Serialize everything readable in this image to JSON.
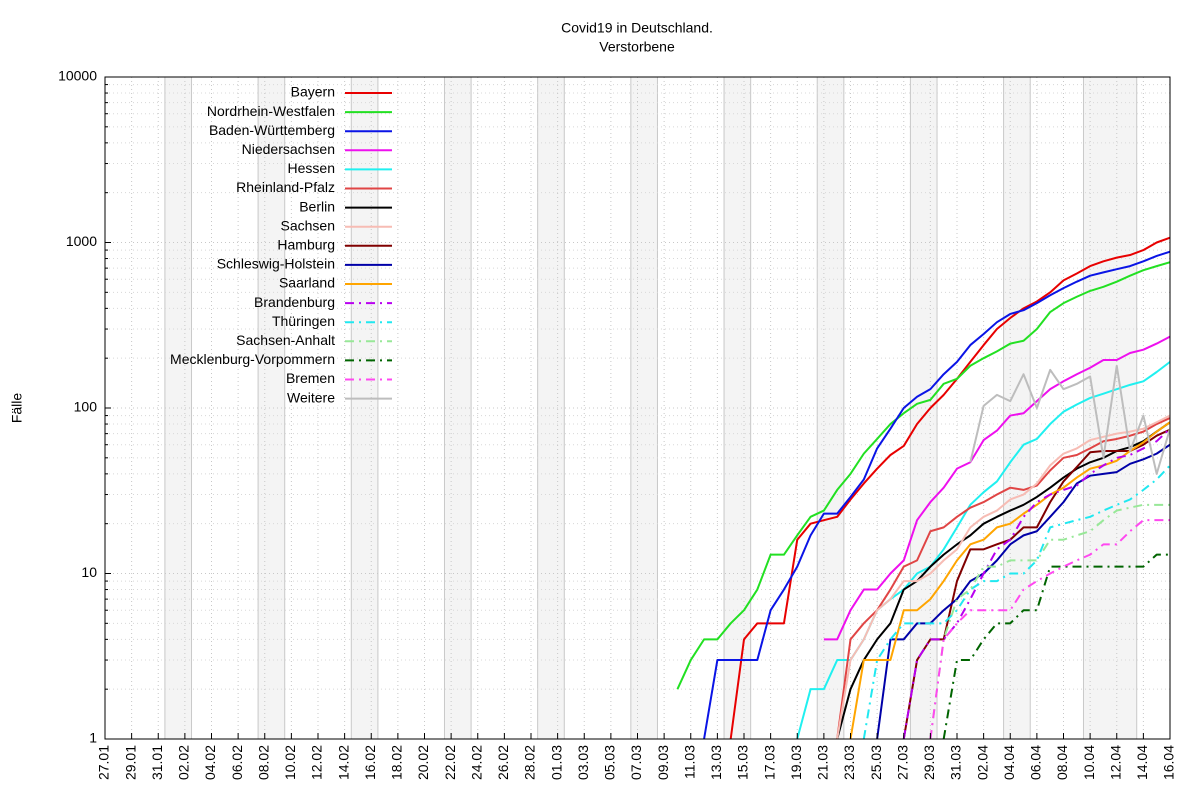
{
  "chart_data": {
    "type": "line",
    "title": "Covid19 in Deutschland.",
    "subtitle": "Verstorbene",
    "ylabel": "Fälle",
    "log_scale_y": true,
    "grid": true,
    "legend": "upper left",
    "x": [
      43,
      44,
      45,
      46,
      47,
      48,
      49,
      50,
      51,
      52,
      53,
      54,
      55,
      56,
      57,
      58,
      59,
      60,
      61,
      62,
      63,
      64,
      65,
      66,
      67,
      68,
      69,
      70,
      71,
      72,
      73,
      74,
      75,
      76,
      77,
      78,
      79,
      80
    ],
    "xlim": [
      0,
      80
    ],
    "xticks": [
      {
        "value": 0,
        "label": "27.01"
      },
      {
        "value": 2,
        "label": "29.01"
      },
      {
        "value": 4,
        "label": "31.01"
      },
      {
        "value": 6,
        "label": "02.02"
      },
      {
        "value": 8,
        "label": "04.02"
      },
      {
        "value": 10,
        "label": "06.02"
      },
      {
        "value": 12,
        "label": "08.02"
      },
      {
        "value": 14,
        "label": "10.02"
      },
      {
        "value": 16,
        "label": "12.02"
      },
      {
        "value": 18,
        "label": "14.02"
      },
      {
        "value": 20,
        "label": "16.02"
      },
      {
        "value": 22,
        "label": "18.02"
      },
      {
        "value": 24,
        "label": "20.02"
      },
      {
        "value": 26,
        "label": "22.02"
      },
      {
        "value": 28,
        "label": "24.02"
      },
      {
        "value": 30,
        "label": "26.02"
      },
      {
        "value": 32,
        "label": "28.02"
      },
      {
        "value": 34,
        "label": "01.03"
      },
      {
        "value": 36,
        "label": "03.03"
      },
      {
        "value": 38,
        "label": "05.03"
      },
      {
        "value": 40,
        "label": "07.03"
      },
      {
        "value": 42,
        "label": "09.03"
      },
      {
        "value": 44,
        "label": "11.03"
      },
      {
        "value": 46,
        "label": "13.03"
      },
      {
        "value": 48,
        "label": "15.03"
      },
      {
        "value": 50,
        "label": "17.03"
      },
      {
        "value": 52,
        "label": "19.03"
      },
      {
        "value": 54,
        "label": "21.03"
      },
      {
        "value": 56,
        "label": "23.03"
      },
      {
        "value": 58,
        "label": "25.03"
      },
      {
        "value": 60,
        "label": "27.03"
      },
      {
        "value": 62,
        "label": "29.03"
      },
      {
        "value": 64,
        "label": "31.03"
      },
      {
        "value": 66,
        "label": "02.04"
      },
      {
        "value": 68,
        "label": "04.04"
      },
      {
        "value": 70,
        "label": "06.04"
      },
      {
        "value": 72,
        "label": "08.04"
      },
      {
        "value": 74,
        "label": "10.04"
      },
      {
        "value": 76,
        "label": "12.04"
      },
      {
        "value": 78,
        "label": "14.04"
      },
      {
        "value": 80,
        "label": "16.04"
      }
    ],
    "ylim": [
      1,
      10000
    ],
    "yticks": [
      1,
      10,
      100,
      1000,
      10000
    ],
    "series": [
      {
        "name": "Bayern",
        "color": "#e80000",
        "values": [
          null,
          null,
          null,
          null,
          1,
          4,
          5,
          5,
          5,
          16,
          20,
          21,
          22,
          28,
          35,
          43,
          52,
          59,
          80,
          100,
          120,
          150,
          190,
          240,
          300,
          350,
          400,
          440,
          500,
          590,
          650,
          720,
          770,
          810,
          840,
          900,
          1000,
          1070
        ]
      },
      {
        "name": "Nordrhein-Westfalen",
        "color": "#22e022",
        "values": [
          2,
          3,
          4,
          4,
          5,
          6,
          8,
          13,
          13,
          17,
          22,
          24,
          32,
          40,
          53,
          65,
          80,
          93,
          106,
          112,
          140,
          150,
          180,
          200,
          220,
          245,
          255,
          300,
          380,
          430,
          470,
          510,
          540,
          580,
          630,
          680,
          720,
          760
        ]
      },
      {
        "name": "Baden-Württemberg",
        "color": "#0a14e6",
        "values": [
          null,
          null,
          1,
          3,
          3,
          3,
          3,
          6,
          8,
          11,
          17,
          23,
          23,
          29,
          37,
          57,
          75,
          100,
          117,
          130,
          160,
          190,
          240,
          280,
          330,
          370,
          390,
          430,
          480,
          530,
          580,
          630,
          660,
          690,
          720,
          770,
          830,
          880
        ]
      },
      {
        "name": "Niedersachsen",
        "color": "#ee10ee",
        "values": [
          null,
          null,
          null,
          null,
          null,
          null,
          null,
          null,
          null,
          null,
          null,
          4,
          4,
          6,
          8,
          8,
          10,
          12,
          21,
          27,
          33,
          43,
          47,
          64,
          73,
          90,
          93,
          110,
          130,
          145,
          160,
          175,
          195,
          195,
          215,
          225,
          245,
          270
        ]
      },
      {
        "name": "Hessen",
        "color": "#20f0f0",
        "values": [
          null,
          null,
          null,
          null,
          null,
          null,
          null,
          null,
          null,
          1,
          2,
          2,
          3,
          3,
          4,
          6,
          7,
          8,
          10,
          11,
          14,
          19,
          26,
          31,
          36,
          47,
          60,
          65,
          80,
          95,
          105,
          115,
          122,
          130,
          138,
          145,
          165,
          190
        ]
      },
      {
        "name": "Rheinland-Pfalz",
        "color": "#e04545",
        "values": [
          null,
          null,
          null,
          null,
          null,
          null,
          null,
          null,
          null,
          null,
          null,
          null,
          1,
          4,
          5,
          6,
          8,
          11,
          12,
          18,
          19,
          22,
          25,
          27,
          30,
          33,
          32,
          34,
          42,
          50,
          52,
          57,
          63,
          65,
          68,
          72,
          80,
          87
        ]
      },
      {
        "name": "Berlin",
        "color": "#000000",
        "values": [
          null,
          null,
          null,
          null,
          null,
          null,
          null,
          null,
          null,
          null,
          null,
          null,
          1,
          2,
          3,
          4,
          5,
          8,
          9,
          11,
          13,
          15,
          17,
          20,
          22,
          24,
          26,
          29,
          33,
          38,
          43,
          47,
          50,
          55,
          58,
          63,
          72,
          82
        ]
      },
      {
        "name": "Sachsen",
        "color": "#f7bcb4",
        "values": [
          null,
          null,
          null,
          null,
          null,
          null,
          null,
          null,
          null,
          null,
          null,
          null,
          1,
          3,
          4,
          6,
          7,
          9,
          9,
          10,
          12,
          14,
          19,
          22,
          24,
          28,
          30,
          35,
          45,
          53,
          57,
          64,
          67,
          70,
          72,
          75,
          82,
          90
        ]
      },
      {
        "name": "Hamburg",
        "color": "#800000",
        "values": [
          null,
          null,
          null,
          null,
          null,
          null,
          null,
          null,
          null,
          null,
          null,
          null,
          null,
          null,
          null,
          null,
          null,
          1,
          3,
          4,
          4,
          9,
          14,
          14,
          15,
          16,
          19,
          19,
          27,
          36,
          44,
          54,
          55,
          55,
          55,
          60,
          68,
          74
        ]
      },
      {
        "name": "Schleswig-Holstein",
        "color": "#0000a8",
        "values": [
          null,
          null,
          null,
          null,
          null,
          null,
          null,
          null,
          null,
          null,
          null,
          null,
          null,
          null,
          null,
          1,
          4,
          4,
          5,
          5,
          6,
          7,
          9,
          10,
          12,
          15,
          17,
          18,
          22,
          27,
          35,
          39,
          40,
          41,
          46,
          49,
          53,
          60
        ]
      },
      {
        "name": "Saarland",
        "color": "#ffa500",
        "values": [
          null,
          null,
          null,
          null,
          null,
          null,
          null,
          null,
          null,
          null,
          null,
          null,
          null,
          1,
          3,
          3,
          3,
          6,
          6,
          7,
          9,
          12,
          15,
          16,
          19,
          20,
          23,
          26,
          30,
          33,
          38,
          43,
          45,
          48,
          55,
          62,
          72,
          82
        ]
      },
      {
        "name": "Brandenburg",
        "color": "#b800f0",
        "dash": "dashdot",
        "values": [
          null,
          null,
          null,
          null,
          null,
          null,
          null,
          null,
          null,
          null,
          null,
          null,
          null,
          null,
          null,
          null,
          null,
          1,
          3,
          4,
          4,
          5,
          7,
          10,
          14,
          16,
          22,
          27,
          30,
          32,
          34,
          40,
          45,
          50,
          52,
          57,
          63,
          75
        ]
      },
      {
        "name": "Thüringen",
        "color": "#20e8f0",
        "dash": "dashdot",
        "values": [
          null,
          null,
          null,
          null,
          null,
          null,
          null,
          null,
          null,
          null,
          null,
          null,
          null,
          null,
          1,
          3,
          4,
          5,
          5,
          5,
          5,
          6,
          8,
          9,
          9,
          10,
          10,
          12,
          19,
          20,
          21,
          22,
          24,
          26,
          28,
          32,
          37,
          45
        ]
      },
      {
        "name": "Sachsen-Anhalt",
        "color": "#98e898",
        "dash": "dashdot",
        "values": [
          null,
          null,
          null,
          null,
          null,
          null,
          null,
          null,
          null,
          null,
          null,
          null,
          null,
          null,
          null,
          null,
          null,
          null,
          null,
          1,
          4,
          7,
          8,
          11,
          11,
          12,
          12,
          12,
          16,
          16,
          17,
          18,
          21,
          24,
          25,
          26,
          26,
          26
        ]
      },
      {
        "name": "Mecklenburg-Vorpommern",
        "color": "#006400",
        "dash": "dashdot",
        "values": [
          null,
          null,
          null,
          null,
          null,
          null,
          null,
          null,
          null,
          null,
          null,
          null,
          null,
          null,
          null,
          null,
          null,
          null,
          null,
          null,
          1,
          3,
          3,
          4,
          5,
          5,
          6,
          6,
          11,
          11,
          11,
          11,
          11,
          11,
          11,
          11,
          13,
          13
        ]
      },
      {
        "name": "Bremen",
        "color": "#ff48f0",
        "dash": "dashdot",
        "values": [
          null,
          null,
          null,
          null,
          null,
          null,
          null,
          null,
          null,
          null,
          null,
          null,
          null,
          null,
          null,
          null,
          null,
          null,
          null,
          1,
          4,
          5,
          6,
          6,
          6,
          6,
          8,
          9,
          10,
          11,
          12,
          13,
          15,
          15,
          18,
          21,
          21,
          21
        ]
      },
      {
        "name": "Weitere",
        "color": "#bdbdbd",
        "values": [
          null,
          null,
          null,
          null,
          null,
          null,
          null,
          null,
          null,
          null,
          null,
          null,
          null,
          null,
          null,
          null,
          null,
          null,
          null,
          null,
          null,
          null,
          47,
          103,
          120,
          110,
          160,
          100,
          170,
          130,
          140,
          155,
          50,
          180,
          55,
          90,
          40,
          75
        ]
      }
    ]
  }
}
